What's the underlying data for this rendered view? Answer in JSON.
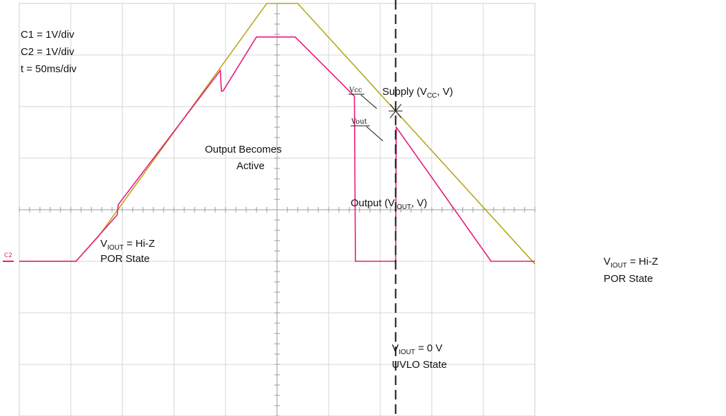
{
  "chart_data": {
    "type": "line",
    "title": "",
    "xlabel": "",
    "ylabel": "",
    "grid": true,
    "x_divisions": 10,
    "y_divisions": 8,
    "settings": [
      "C1 = 1V/div",
      "C2 = 1V/div",
      "t = 50ms/div"
    ],
    "channel_marker": "C2",
    "x_unit": "div",
    "y_unit": "div above C2 ground",
    "xlim": [
      0,
      10
    ],
    "ylim": [
      -0.1,
      5
    ],
    "cursor_x": 7.3,
    "series": [
      {
        "name": "Vcc",
        "color": "#b5a619",
        "points": [
          [
            0,
            0
          ],
          [
            1.1,
            0
          ],
          [
            1.55,
            0.5
          ],
          [
            4.8,
            5.0
          ],
          [
            5.4,
            5.0
          ],
          [
            10,
            -0.05
          ]
        ]
      },
      {
        "name": "Vout",
        "color": "#e8197a",
        "points": [
          [
            0,
            0
          ],
          [
            1.1,
            0
          ],
          [
            1.9,
            0.9
          ],
          [
            1.92,
            1.1
          ],
          [
            3.9,
            3.7
          ],
          [
            3.92,
            3.3
          ],
          [
            3.95,
            3.3
          ],
          [
            4.6,
            4.35
          ],
          [
            5.35,
            4.35
          ],
          [
            6.5,
            3.2
          ],
          [
            6.52,
            0
          ],
          [
            7.3,
            0
          ],
          [
            7.31,
            2.6
          ],
          [
            9.15,
            0
          ],
          [
            10,
            0
          ]
        ]
      }
    ]
  },
  "annotations": {
    "supply_main": "Supply (V",
    "supply_sub": "CC",
    "supply_end": ", V)",
    "output_main": "Output (V",
    "output_sub": "IOUT",
    "output_end": ", V)",
    "becomes_line1": "Output Becomes",
    "becomes_line2": "Active",
    "vcc_tag": "Vcc",
    "vout_tag": "Vout",
    "left_state_v": "V",
    "left_state_sub": "IOUT",
    "left_state_eq": " = Hi-Z",
    "left_state_line2": "POR State",
    "right_state_v": "V",
    "right_state_sub": "IOUT",
    "right_state_eq": " = Hi-Z",
    "right_state_line2": "POR State",
    "uvlo_v": "V",
    "uvlo_sub": "IOUT",
    "uvlo_eq": " = 0 V",
    "uvlo_line2": "UVLO State"
  }
}
